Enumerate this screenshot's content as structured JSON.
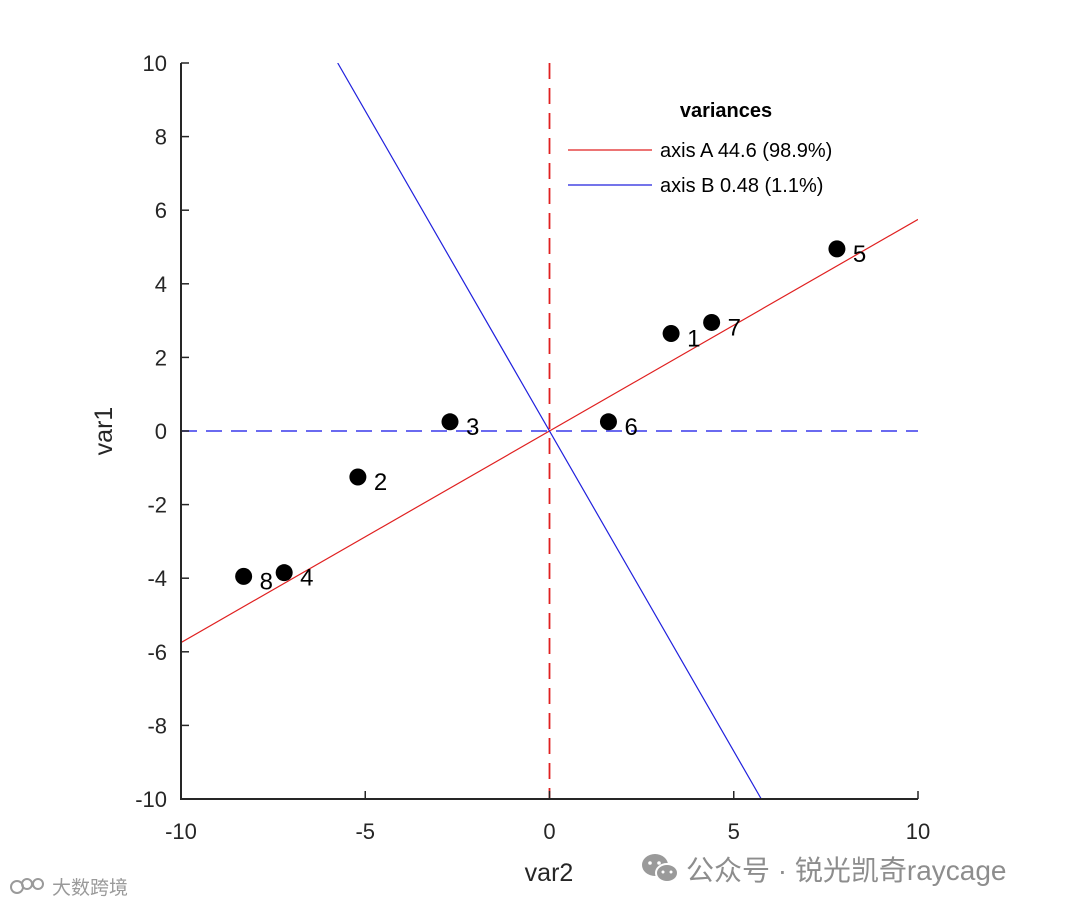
{
  "chart_data": {
    "type": "scatter",
    "xlabel": "var2",
    "ylabel": "var1",
    "xlim": [
      -10,
      10
    ],
    "ylim": [
      -10,
      10
    ],
    "xticks": [
      "-10",
      "-5",
      "0",
      "5",
      "10"
    ],
    "yticks": [
      "10",
      "8",
      "6",
      "4",
      "2",
      "0",
      "-2",
      "-4",
      "-6",
      "-8",
      "-10"
    ],
    "points": [
      {
        "label": "1",
        "x": 3.3,
        "y": 2.65
      },
      {
        "label": "2",
        "x": -5.2,
        "y": -1.25
      },
      {
        "label": "3",
        "x": -2.7,
        "y": 0.25
      },
      {
        "label": "4",
        "x": -7.2,
        "y": -3.85
      },
      {
        "label": "5",
        "x": 7.8,
        "y": 4.95
      },
      {
        "label": "6",
        "x": 1.6,
        "y": 0.25
      },
      {
        "label": "7",
        "x": 4.4,
        "y": 2.95
      },
      {
        "label": "8",
        "x": -8.3,
        "y": -3.95
      }
    ],
    "axis_a_slope": 0.575,
    "axis_b_slope": -1.74,
    "reference_lines": [
      {
        "orientation": "vertical",
        "value": 0,
        "style": "dashed",
        "color": "#e02020"
      },
      {
        "orientation": "horizontal",
        "value": 0,
        "style": "dashed",
        "color": "#5555ee"
      }
    ],
    "legend": {
      "title": "variances",
      "position": "top-right",
      "entries": [
        {
          "label": "axis A 44.6 (98.9%)",
          "color": "#e02020"
        },
        {
          "label": "axis B 0.48 (1.1%)",
          "color": "#2020dd"
        }
      ]
    },
    "colors": {
      "axis_a": "#e02020",
      "axis_b": "#2020dd",
      "points": "#000000",
      "frame": "#262626"
    }
  },
  "watermark": {
    "left": "大数跨境",
    "right": "公众号 · 锐光凯奇raycage"
  }
}
